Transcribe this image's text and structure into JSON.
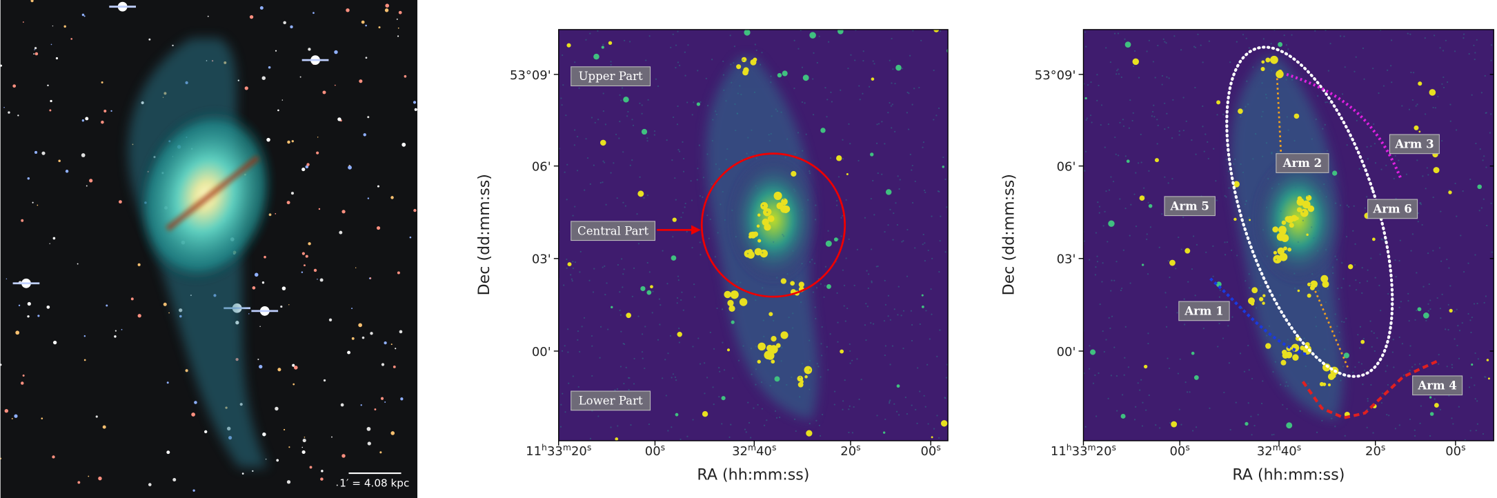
{
  "figure": {
    "optical": {
      "scale_label": "1′ = 4.08 kpc"
    },
    "panels": [
      {
        "xlabel": "RA (hh:mm:ss)",
        "ylabel": "Dec (dd:mm:ss)",
        "xticks": [
          [
            "11",
            "h",
            "33",
            "m",
            "20",
            "s"
          ],
          [
            "00",
            "s"
          ],
          [
            "32",
            "m",
            "40",
            "s"
          ],
          [
            "20",
            "s"
          ],
          [
            "00",
            "s"
          ]
        ],
        "yticks": [
          "53°09'",
          "06'",
          "03'",
          "00'"
        ],
        "annotations": [
          "Upper Part",
          "Central Part",
          "Lower Part"
        ]
      },
      {
        "xlabel": "RA (hh:mm:ss)",
        "ylabel": "Dec (dd:mm:ss)",
        "xticks": [
          [
            "11",
            "h",
            "33",
            "m",
            "20",
            "s"
          ],
          [
            "00",
            "s"
          ],
          [
            "32",
            "m",
            "40",
            "s"
          ],
          [
            "20",
            "s"
          ],
          [
            "00",
            "s"
          ]
        ],
        "yticks": [
          "53°09'",
          "06'",
          "03'",
          "00'"
        ],
        "annotations": [
          "Arm 1",
          "Arm 2",
          "Arm 3",
          "Arm 4",
          "Arm 5",
          "Arm 6"
        ]
      }
    ]
  }
}
